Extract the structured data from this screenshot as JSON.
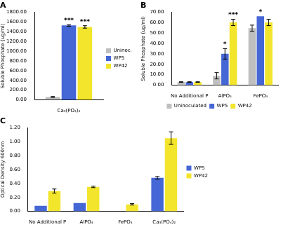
{
  "chart_data": [
    {
      "type": "bar",
      "title": "A",
      "y_label": "Soluble Phosphate (ug/ml)",
      "categories": [
        "Ca₃(PO₄)₂"
      ],
      "series": [
        {
          "name": "Uninoc.",
          "color": "#bfbfbf",
          "values": [
            60
          ],
          "errors": [
            10
          ],
          "significance": [
            null
          ]
        },
        {
          "name": "WP5",
          "color": "#4566d5",
          "values": [
            1525
          ],
          "errors": [
            15
          ],
          "significance": [
            "***"
          ]
        },
        {
          "name": "WP42",
          "color": "#f2e52c",
          "values": [
            1495
          ],
          "errors": [
            25
          ],
          "significance": [
            "***"
          ]
        }
      ],
      "ylim": [
        0,
        1800
      ],
      "yticks": [
        {
          "value": 0,
          "label": "0.00"
        },
        {
          "value": 200,
          "label": "200.00"
        },
        {
          "value": 400,
          "label": "400.00"
        },
        {
          "value": 600,
          "label": "600.00"
        },
        {
          "value": 800,
          "label": "800.00"
        },
        {
          "value": 1000,
          "label": "1000.00"
        },
        {
          "value": 1200,
          "label": "1200.00"
        },
        {
          "value": 1400,
          "label": "1400.00"
        },
        {
          "value": 1600,
          "label": "1600.00"
        },
        {
          "value": 1800,
          "label": "1800.00"
        }
      ],
      "grid": false,
      "legend": "right"
    },
    {
      "type": "bar",
      "title": "B",
      "y_label": "Soluble Phosphate (ug/ml)",
      "categories": [
        "No Additional P",
        "AlPO₄",
        "FePO₄"
      ],
      "series": [
        {
          "name": "Uninoculated",
          "color": "#bfbfbf",
          "values": [
            3,
            9,
            54.5
          ],
          "errors": [
            0.3,
            3,
            3
          ],
          "significance": [
            null,
            null,
            null
          ]
        },
        {
          "name": "WP5",
          "color": "#4566d5",
          "values": [
            3,
            30,
            66
          ],
          "errors": [
            0.3,
            5,
            null
          ],
          "significance": [
            null,
            "*",
            "*"
          ]
        },
        {
          "name": "WP42",
          "color": "#f2e52c",
          "values": [
            3,
            60,
            60
          ],
          "errors": [
            0.3,
            3,
            3
          ],
          "significance": [
            null,
            "***",
            null
          ]
        }
      ],
      "ylim": [
        0,
        70
      ],
      "yticks": [
        {
          "value": 0,
          "label": "0.00"
        },
        {
          "value": 10,
          "label": "10.00"
        },
        {
          "value": 20,
          "label": "20.00"
        },
        {
          "value": 30,
          "label": "30.00"
        },
        {
          "value": 40,
          "label": "40.00"
        },
        {
          "value": 50,
          "label": "50.00"
        },
        {
          "value": 60,
          "label": "60.00"
        },
        {
          "value": 70,
          "label": "70.00"
        }
      ],
      "grid": false,
      "legend": "bottom"
    },
    {
      "type": "bar",
      "title": "C",
      "y_label": "Optical Density 600nm",
      "categories": [
        "No Additional P",
        "AlPO₄",
        "FePO₄",
        "Ca₃(PO₄)₂"
      ],
      "series": [
        {
          "name": "WP5",
          "color": "#4566d5",
          "values": [
            0.08,
            0.12,
            null,
            0.48
          ],
          "errors": [
            null,
            null,
            null,
            0.02
          ]
        },
        {
          "name": "WP42",
          "color": "#f2e52c",
          "values": [
            0.29,
            0.35,
            0.1,
            1.05
          ],
          "errors": [
            0.03,
            0.01,
            0.01,
            0.09
          ]
        }
      ],
      "ylim": [
        0,
        1.2
      ],
      "yticks": [
        {
          "value": 0,
          "label": "0.00"
        },
        {
          "value": 0.2,
          "label": "0.20"
        },
        {
          "value": 0.4,
          "label": "0.40"
        },
        {
          "value": 0.6,
          "label": "0.60"
        },
        {
          "value": 0.8,
          "label": "0.80"
        },
        {
          "value": 1.0,
          "label": "1.00"
        },
        {
          "value": 1.2,
          "label": "1.20"
        }
      ],
      "grid": false,
      "legend": "right"
    }
  ]
}
